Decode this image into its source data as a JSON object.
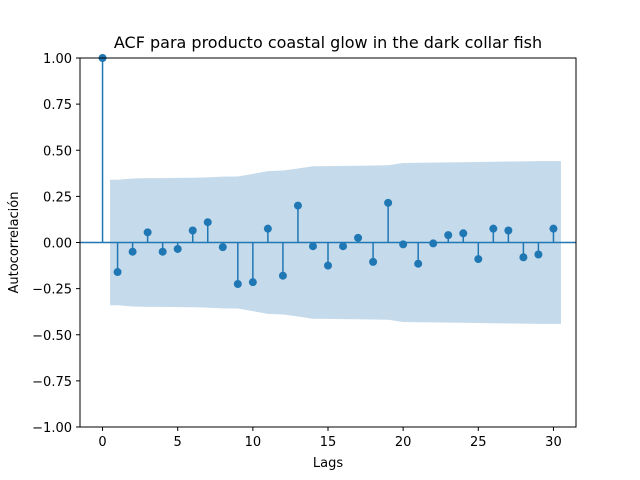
{
  "chart_data": {
    "type": "stem",
    "title": "ACF para producto coastal glow in the dark collar fish",
    "xlabel": "Lags",
    "ylabel": "Autocorrelación",
    "xlim": [
      -1.5,
      31.5
    ],
    "ylim": [
      -1.0,
      1.0
    ],
    "xticks": [
      0,
      5,
      10,
      15,
      20,
      25,
      30
    ],
    "yticks": [
      -1.0,
      -0.75,
      -0.5,
      -0.25,
      0.0,
      0.25,
      0.5,
      0.75,
      1.0
    ],
    "xtick_labels": [
      "0",
      "5",
      "10",
      "15",
      "20",
      "25",
      "30"
    ],
    "ytick_labels": [
      "−1.00",
      "−0.75",
      "−0.50",
      "−0.25",
      "0.00",
      "0.25",
      "0.50",
      "0.75",
      "1.00"
    ],
    "grid": false,
    "colors": {
      "stem": "#1f77b4",
      "confidence_band": "#c5daeb"
    },
    "lags": [
      0,
      1,
      2,
      3,
      4,
      5,
      6,
      7,
      8,
      9,
      10,
      11,
      12,
      13,
      14,
      15,
      16,
      17,
      18,
      19,
      20,
      21,
      22,
      23,
      24,
      25,
      26,
      27,
      28,
      29,
      30
    ],
    "values": [
      1.0,
      -0.16,
      -0.05,
      0.055,
      -0.05,
      -0.035,
      0.065,
      0.11,
      -0.025,
      -0.225,
      -0.215,
      0.075,
      -0.18,
      0.2,
      -0.02,
      -0.125,
      -0.02,
      0.025,
      -0.105,
      0.215,
      -0.01,
      -0.115,
      -0.005,
      0.04,
      0.05,
      -0.09,
      0.075,
      0.065,
      -0.08,
      -0.065,
      0.075
    ],
    "confidence_band": {
      "x": [
        0.5,
        1,
        2,
        3,
        4,
        5,
        6,
        7,
        8,
        9,
        10,
        11,
        12,
        13,
        14,
        15,
        16,
        17,
        18,
        19,
        20,
        21,
        22,
        23,
        24,
        25,
        26,
        27,
        28,
        29,
        30,
        30.5
      ],
      "upper": [
        0.34,
        0.34,
        0.347,
        0.349,
        0.349,
        0.35,
        0.351,
        0.353,
        0.357,
        0.358,
        0.372,
        0.387,
        0.39,
        0.401,
        0.413,
        0.414,
        0.415,
        0.416,
        0.417,
        0.419,
        0.431,
        0.432,
        0.433,
        0.434,
        0.435,
        0.436,
        0.438,
        0.439,
        0.44,
        0.441,
        0.441,
        0.441
      ]
    }
  }
}
